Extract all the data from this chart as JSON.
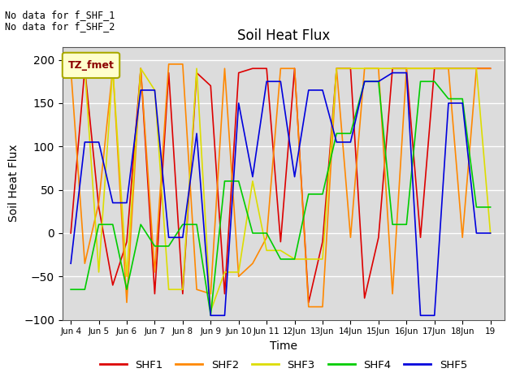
{
  "title": "Soil Heat Flux",
  "xlabel": "Time",
  "ylabel": "Soil Heat Flux",
  "ylim": [
    -100,
    215
  ],
  "yticks": [
    -100,
    -50,
    0,
    50,
    100,
    150,
    200
  ],
  "plot_bg": "#dcdcdc",
  "fig_bg": "#ffffff",
  "text_no_data": [
    "No data for f_SHF_1",
    "No data for f_SHF_2"
  ],
  "legend_label": "TZ_fmet",
  "legend_box_facecolor": "#ffffcc",
  "legend_box_edgecolor": "#aaaa00",
  "series_colors": {
    "SHF1": "#dd0000",
    "SHF2": "#ff8800",
    "SHF3": "#dddd00",
    "SHF4": "#00cc00",
    "SHF5": "#0000dd"
  },
  "x": [
    4.0,
    4.5,
    5.0,
    5.5,
    6.0,
    6.5,
    7.0,
    7.5,
    8.0,
    8.5,
    9.0,
    9.5,
    10.0,
    10.5,
    11.0,
    11.5,
    12.0,
    12.5,
    13.0,
    13.5,
    14.0,
    14.5,
    15.0,
    15.5,
    16.0,
    16.5,
    17.0,
    17.5,
    18.0,
    18.5,
    19.0
  ],
  "SHF1": [
    0,
    190,
    30,
    -60,
    -10,
    190,
    -70,
    185,
    -70,
    185,
    170,
    -70,
    185,
    190,
    190,
    -10,
    190,
    -80,
    -10,
    190,
    190,
    -75,
    -5,
    190,
    190,
    -5,
    190,
    190,
    190,
    190,
    190
  ],
  "SHF2": [
    190,
    -35,
    35,
    190,
    -80,
    190,
    -45,
    195,
    195,
    -65,
    -70,
    190,
    -50,
    -35,
    -5,
    190,
    190,
    -85,
    -85,
    190,
    -5,
    190,
    190,
    -70,
    190,
    190,
    190,
    190,
    -5,
    190,
    190
  ],
  "SHF3": [
    190,
    190,
    -45,
    190,
    -50,
    190,
    165,
    -65,
    -65,
    190,
    -90,
    -45,
    -45,
    60,
    -20,
    -20,
    -30,
    -30,
    -30,
    190,
    190,
    190,
    190,
    190,
    190,
    190,
    190,
    190,
    190,
    190,
    0
  ],
  "SHF4": [
    -65,
    -65,
    10,
    10,
    -65,
    10,
    -15,
    -15,
    10,
    10,
    -95,
    60,
    60,
    0,
    0,
    -30,
    -30,
    45,
    45,
    115,
    115,
    175,
    175,
    10,
    10,
    175,
    175,
    155,
    155,
    30,
    30
  ],
  "SHF5": [
    -35,
    105,
    105,
    35,
    35,
    165,
    165,
    -5,
    -5,
    115,
    -95,
    -95,
    150,
    65,
    175,
    175,
    65,
    165,
    165,
    105,
    105,
    175,
    175,
    185,
    185,
    -95,
    -95,
    150,
    150,
    0,
    0
  ],
  "xtick_positions": [
    4,
    5,
    6,
    7,
    8,
    9,
    10,
    11,
    12,
    13,
    14,
    15,
    16,
    17,
    18,
    19
  ],
  "xtick_labels": [
    "Jun 4",
    "Jun 5",
    "Jun 6",
    "Jun 7",
    "Jun 8",
    "Jun 9",
    "Jun 10",
    "Jun 11",
    "12Jun",
    "13Jun",
    "14Jun",
    "15Jun",
    "16Jun",
    "17Jun",
    "18Jun",
    "19"
  ]
}
